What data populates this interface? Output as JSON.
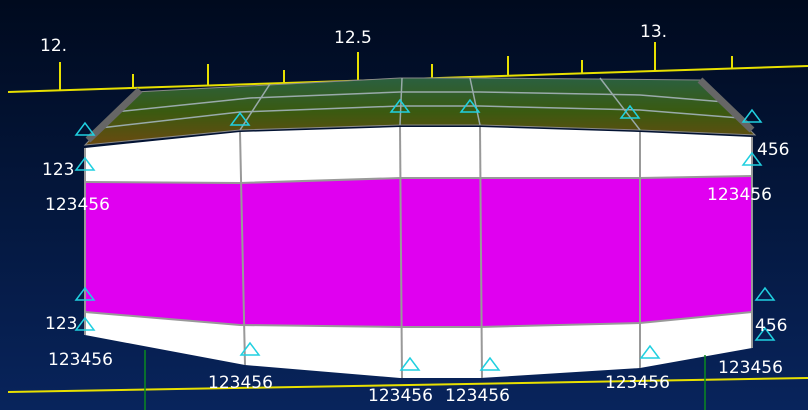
{
  "ruler": {
    "labels": [
      "12.",
      "12.5",
      "13."
    ]
  },
  "constraints": [
    "123",
    "123456",
    "123",
    "123456",
    "123456",
    "123456",
    "123456",
    "123456",
    "123456",
    "456",
    "123456",
    "456"
  ]
}
